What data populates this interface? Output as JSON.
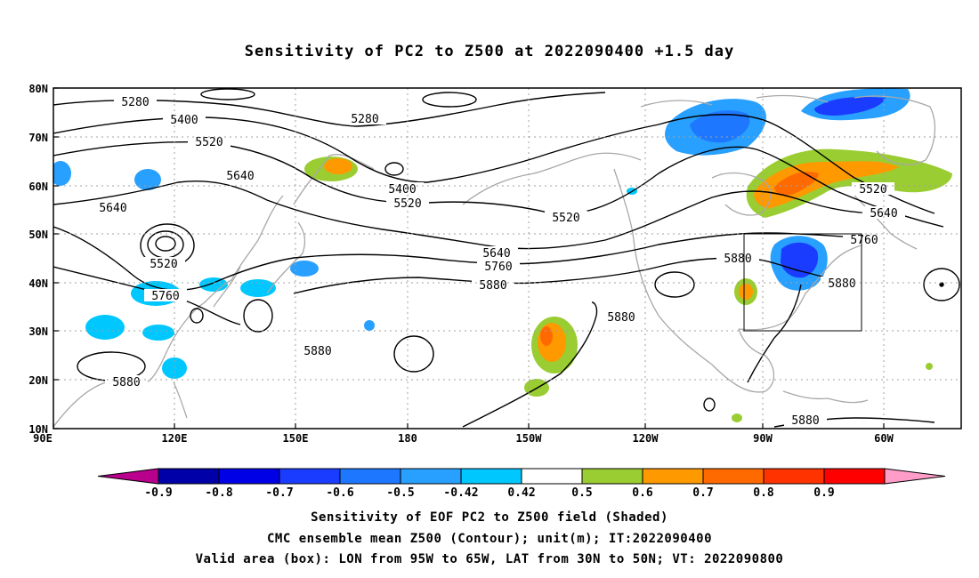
{
  "title": "Sensitivity of PC2 to Z500 at 2022090400 +1.5 day",
  "lat_labels": [
    "80N",
    "70N",
    "60N",
    "50N",
    "40N",
    "30N",
    "20N",
    "10N"
  ],
  "lon_labels": [
    "90E",
    "120E",
    "150E",
    "180",
    "150W",
    "120W",
    "90W",
    "60W"
  ],
  "contour_labels": [
    "5280",
    "5400",
    "5520",
    "5640",
    "5760",
    "5880"
  ],
  "valid_box": {
    "lon_from": "95W",
    "lon_to": "65W",
    "lat_from": "30N",
    "lat_to": "50N"
  },
  "colorbar": {
    "labels": [
      "-0.9",
      "-0.8",
      "-0.7",
      "-0.6",
      "-0.5",
      "-0.42",
      "0.42",
      "0.5",
      "0.6",
      "0.7",
      "0.8",
      "0.9"
    ],
    "colors": [
      "#b8008c",
      "#0000a8",
      "#0000e6",
      "#1a3cff",
      "#1e78ff",
      "#28a0ff",
      "#00c8ff",
      "#ffffff",
      "#9acd32",
      "#ff9900",
      "#ff6a00",
      "#ff3300",
      "#ff0000",
      "#ff9cc8"
    ]
  },
  "caption": {
    "line1": "Sensitivity of EOF PC2 to Z500 field (Shaded)",
    "line2": "CMC ensemble mean Z500 (Contour); unit(m); IT:2022090400",
    "line3": "Valid area (box): LON from 95W to 65W, LAT from 30N to 50N; VT: 2022090800"
  }
}
